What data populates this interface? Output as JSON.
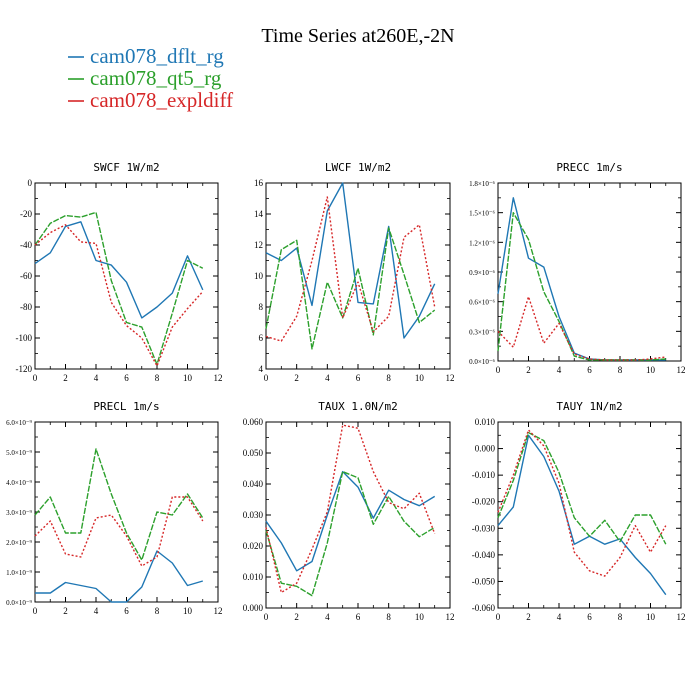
{
  "title": "Time Series at260E,-2N",
  "legend": [
    {
      "name": "cam078_dflt_rg",
      "color": "#1f77b4"
    },
    {
      "name": "cam078_qt5_rg",
      "color": "#2ca02c"
    },
    {
      "name": "cam078_expldiff",
      "color": "#d62728"
    }
  ],
  "chart_data": [
    {
      "type": "line",
      "title": "SWCF   1W/m2",
      "x": [
        0,
        1,
        2,
        3,
        4,
        5,
        6,
        7,
        8,
        9,
        10,
        11
      ],
      "xlim": [
        0,
        12
      ],
      "xticks": [
        "0",
        "2",
        "4",
        "6",
        "8",
        "10",
        "12"
      ],
      "ylim": [
        -120,
        0
      ],
      "yticks": [
        "0",
        "-20",
        "-40",
        "-60",
        "-80",
        "-100",
        "-120"
      ],
      "series": [
        {
          "name": "cam078_dflt_rg",
          "values": [
            -52,
            -45,
            -28,
            -25,
            -50,
            -53,
            -64,
            -87,
            -80,
            -71,
            -47,
            -69
          ]
        },
        {
          "name": "cam078_qt5_rg",
          "values": [
            -40,
            -26,
            -21,
            -22,
            -19,
            -63,
            -90,
            -93,
            -117,
            -84,
            -50,
            -55
          ]
        },
        {
          "name": "cam078_expldiff",
          "values": [
            -40,
            -32,
            -27,
            -38,
            -39,
            -77,
            -92,
            -100,
            -118,
            -93,
            -81,
            -70
          ]
        }
      ]
    },
    {
      "type": "line",
      "title": "LWCF   1W/m2",
      "x": [
        0,
        1,
        2,
        3,
        4,
        5,
        6,
        7,
        8,
        9,
        10,
        11
      ],
      "xlim": [
        0,
        12
      ],
      "xticks": [
        "0",
        "2",
        "4",
        "6",
        "8",
        "10",
        "12"
      ],
      "ylim": [
        4,
        16
      ],
      "yticks": [
        "16",
        "14",
        "12",
        "10",
        "8",
        "6",
        "4"
      ],
      "series": [
        {
          "name": "cam078_dflt_rg",
          "values": [
            11.5,
            11.0,
            11.8,
            8.1,
            14.2,
            16.0,
            8.3,
            8.2,
            13.2,
            6.0,
            7.4,
            9.5
          ]
        },
        {
          "name": "cam078_qt5_rg",
          "values": [
            6.6,
            11.7,
            12.3,
            5.3,
            9.6,
            7.3,
            10.5,
            6.2,
            13.1,
            10.1,
            7.0,
            7.8
          ]
        },
        {
          "name": "cam078_expldiff",
          "values": [
            6.1,
            5.8,
            7.4,
            11.0,
            15.1,
            7.3,
            9.6,
            6.4,
            7.4,
            12.5,
            13.3,
            8.0
          ]
        }
      ]
    },
    {
      "type": "line",
      "title": "PRECC   1m/s",
      "x": [
        0,
        1,
        2,
        3,
        4,
        5,
        6,
        7,
        8,
        9,
        10,
        11
      ],
      "xlim": [
        0,
        12
      ],
      "xticks": [
        "0",
        "2",
        "4",
        "6",
        "8",
        "10",
        "12"
      ],
      "ylim": [
        0,
        1.8
      ],
      "yticks": [
        "1.8×10⁻⁶",
        "1.5×10⁻⁶",
        "1.2×10⁻⁶",
        "0.9×10⁻⁶",
        "0.6×10⁻⁶",
        "0.3×10⁻⁶",
        "0.0×10⁻⁶"
      ],
      "series": [
        {
          "name": "cam078_dflt_rg",
          "values": [
            0.68,
            1.65,
            1.04,
            0.95,
            0.45,
            0.08,
            0.02,
            0.01,
            0.01,
            0.01,
            0.01,
            0.01
          ]
        },
        {
          "name": "cam078_qt5_rg",
          "values": [
            0.1,
            1.5,
            1.23,
            0.7,
            0.4,
            0.05,
            0.01,
            0.01,
            0.01,
            0.01,
            0.01,
            0.02
          ]
        },
        {
          "name": "cam078_expldiff",
          "values": [
            0.3,
            0.14,
            0.65,
            0.18,
            0.38,
            0.07,
            0.02,
            0.01,
            0.01,
            0.01,
            0.02,
            0.04
          ]
        }
      ]
    },
    {
      "type": "line",
      "title": "PRECL   1m/s",
      "x": [
        0,
        1,
        2,
        3,
        4,
        5,
        6,
        7,
        8,
        9,
        10,
        11
      ],
      "xlim": [
        0,
        12
      ],
      "xticks": [
        "0",
        "2",
        "4",
        "6",
        "8",
        "10",
        "12"
      ],
      "ylim": [
        0,
        6
      ],
      "yticks": [
        "6.0×10⁻⁹",
        "5.0×10⁻⁹",
        "4.0×10⁻⁹",
        "3.0×10⁻⁹",
        "2.0×10⁻⁹",
        "1.0×10⁻⁹",
        "0.0×10⁻⁹"
      ],
      "series": [
        {
          "name": "cam078_dflt_rg",
          "values": [
            0.3,
            0.3,
            0.65,
            0.55,
            0.45,
            0.0,
            0.0,
            0.5,
            1.7,
            1.3,
            0.55,
            0.7
          ]
        },
        {
          "name": "cam078_qt5_rg",
          "values": [
            2.9,
            3.5,
            2.3,
            2.3,
            5.1,
            3.6,
            2.3,
            1.4,
            3.0,
            2.9,
            3.6,
            2.8
          ]
        },
        {
          "name": "cam078_expldiff",
          "values": [
            2.2,
            2.7,
            1.6,
            1.5,
            2.8,
            2.9,
            2.2,
            1.2,
            1.5,
            3.5,
            3.5,
            2.7
          ]
        }
      ]
    },
    {
      "type": "line",
      "title": "TAUX   1.0N/m2",
      "x": [
        0,
        1,
        2,
        3,
        4,
        5,
        6,
        7,
        8,
        9,
        10,
        11
      ],
      "xlim": [
        0,
        12
      ],
      "xticks": [
        "0",
        "2",
        "4",
        "6",
        "8",
        "10",
        "12"
      ],
      "ylim": [
        0,
        0.06
      ],
      "yticks": [
        "0.060",
        "0.050",
        "0.040",
        "0.030",
        "0.020",
        "0.010",
        "0.000"
      ],
      "series": [
        {
          "name": "cam078_dflt_rg",
          "values": [
            0.028,
            0.021,
            0.012,
            0.015,
            0.03,
            0.044,
            0.039,
            0.029,
            0.038,
            0.035,
            0.033,
            0.036
          ]
        },
        {
          "name": "cam078_qt5_rg",
          "values": [
            0.025,
            0.008,
            0.007,
            0.004,
            0.021,
            0.044,
            0.042,
            0.027,
            0.036,
            0.028,
            0.023,
            0.026
          ]
        },
        {
          "name": "cam078_expldiff",
          "values": [
            0.026,
            0.005,
            0.008,
            0.019,
            0.031,
            0.059,
            0.058,
            0.044,
            0.034,
            0.032,
            0.037,
            0.024
          ]
        }
      ]
    },
    {
      "type": "line",
      "title": "TAUY   1N/m2",
      "x": [
        0,
        1,
        2,
        3,
        4,
        5,
        6,
        7,
        8,
        9,
        10,
        11
      ],
      "xlim": [
        0,
        12
      ],
      "xticks": [
        "0",
        "2",
        "4",
        "6",
        "8",
        "10",
        "12"
      ],
      "ylim": [
        -0.06,
        0.01
      ],
      "yticks": [
        "0.010",
        "0.000",
        "-0.010",
        "-0.020",
        "-0.030",
        "-0.040",
        "-0.050",
        "-0.060"
      ],
      "series": [
        {
          "name": "cam078_dflt_rg",
          "values": [
            -0.029,
            -0.022,
            0.005,
            -0.003,
            -0.016,
            -0.036,
            -0.033,
            -0.036,
            -0.034,
            -0.041,
            -0.047,
            -0.055
          ]
        },
        {
          "name": "cam078_qt5_rg",
          "values": [
            -0.026,
            -0.012,
            0.006,
            0.003,
            -0.009,
            -0.026,
            -0.033,
            -0.027,
            -0.035,
            -0.025,
            -0.025,
            -0.036
          ]
        },
        {
          "name": "cam078_expldiff",
          "values": [
            -0.024,
            -0.01,
            0.007,
            0.001,
            -0.013,
            -0.039,
            -0.046,
            -0.048,
            -0.041,
            -0.029,
            -0.039,
            -0.029
          ]
        }
      ]
    }
  ]
}
